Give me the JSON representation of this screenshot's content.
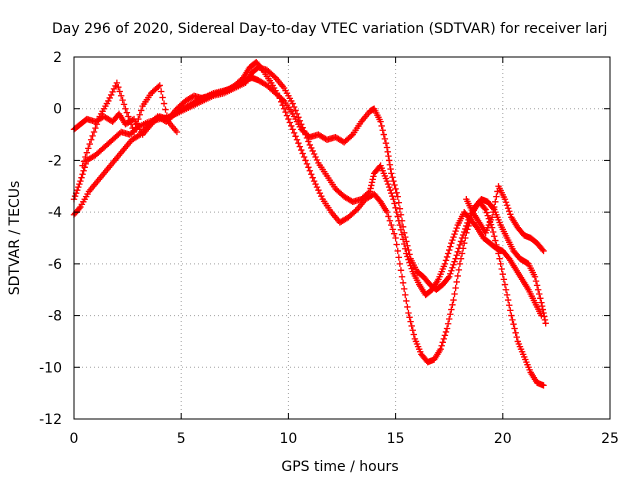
{
  "chart_data": {
    "type": "scatter",
    "title": "Day 296 of 2020, Sidereal Day-to-day VTEC variation (SDTVAR) for receiver larj",
    "xlabel": "GPS time / hours",
    "ylabel": "SDTVAR / TECUs",
    "xlim": [
      0,
      25
    ],
    "ylim": [
      -12,
      2
    ],
    "xticks": [
      "0",
      "5",
      "10",
      "15",
      "20",
      "25"
    ],
    "yticks": [
      "2",
      "0",
      "-2",
      "-4",
      "-6",
      "-8",
      "-10",
      "-12"
    ],
    "grid": true,
    "marker": "+",
    "series": [
      {
        "color": "#ff0000",
        "tracks": [
          {
            "x": [
              0.0,
              0.3,
              0.6,
              1.0,
              1.4,
              1.8,
              2.1,
              2.4,
              2.8,
              3.2,
              3.6,
              4.0,
              4.4,
              4.8,
              5.2,
              5.6,
              6.0,
              6.5,
              7.0,
              7.4,
              7.8,
              8.0,
              8.3,
              8.6,
              9.0,
              9.4,
              9.8,
              10.2,
              10.6,
              11.0,
              11.4,
              11.8,
              12.2,
              12.6,
              13.0,
              13.4,
              13.8,
              14.0,
              14.3,
              14.6,
              14.8,
              15.1,
              15.4,
              15.7,
              16.0,
              16.3,
              16.6,
              16.9,
              17.2,
              17.5,
              17.8,
              18.1,
              18.4,
              18.7,
              19.0,
              19.3,
              19.6,
              19.9,
              20.2,
              20.5,
              20.8,
              21.0,
              21.2,
              21.5,
              21.8,
              22.0
            ],
            "y": [
              -0.8,
              -0.6,
              -0.4,
              -0.5,
              -0.3,
              -0.5,
              -0.2,
              -0.6,
              -0.4,
              -1.0,
              -0.6,
              -0.3,
              -0.4,
              0.0,
              0.3,
              0.5,
              0.4,
              0.6,
              0.7,
              0.8,
              1.0,
              1.1,
              1.2,
              1.1,
              0.9,
              0.6,
              0.3,
              -0.2,
              -0.8,
              -1.1,
              -1.0,
              -1.2,
              -1.1,
              -1.3,
              -1.0,
              -0.5,
              -0.1,
              0.0,
              -0.5,
              -1.5,
              -2.5,
              -3.4,
              -4.8,
              -5.8,
              -6.3,
              -6.5,
              -6.8,
              -7.0,
              -6.8,
              -6.5,
              -5.8,
              -5.0,
              -4.3,
              -3.8,
              -3.5,
              -3.6,
              -3.9,
              -4.5,
              -5.0,
              -5.5,
              -5.8,
              -5.9,
              -6.0,
              -6.5,
              -7.5,
              -8.3
            ]
          },
          {
            "x": [
              0.0,
              0.3,
              0.6,
              1.0,
              1.4,
              1.8,
              2.2,
              2.6,
              3.0,
              3.5,
              4.0,
              4.5,
              5.0,
              5.5,
              6.0,
              6.5,
              7.0,
              7.5,
              8.0,
              8.3,
              8.6,
              9.0,
              9.4,
              9.8,
              10.2,
              10.6,
              11.0,
              11.4,
              11.8,
              12.2,
              12.6,
              13.0,
              13.4,
              13.8,
              14.0,
              14.3,
              14.6,
              14.9,
              15.2,
              15.5,
              15.8,
              16.1,
              16.4,
              16.7,
              17.0,
              17.3,
              17.6,
              17.9,
              18.2,
              18.5,
              18.8,
              19.1,
              19.4,
              19.7,
              20.0,
              20.3,
              20.6,
              20.9,
              21.2,
              21.5,
              21.8
            ],
            "y": [
              -3.5,
              -2.8,
              -2.0,
              -1.8,
              -1.5,
              -1.2,
              -0.9,
              -1.0,
              -0.7,
              -0.5,
              -0.4,
              -0.3,
              -0.1,
              0.1,
              0.3,
              0.5,
              0.6,
              0.8,
              1.0,
              1.4,
              1.6,
              1.5,
              1.2,
              0.8,
              0.2,
              -0.6,
              -1.4,
              -2.1,
              -2.6,
              -3.1,
              -3.4,
              -3.6,
              -3.5,
              -3.2,
              -2.5,
              -2.2,
              -2.8,
              -3.5,
              -4.5,
              -5.6,
              -6.3,
              -6.8,
              -7.2,
              -7.0,
              -6.6,
              -6.0,
              -5.2,
              -4.5,
              -4.0,
              -4.3,
              -4.6,
              -5.0,
              -5.2,
              -5.4,
              -5.5,
              -5.8,
              -6.2,
              -6.6,
              -7.0,
              -7.5,
              -8.0
            ]
          },
          {
            "x": [
              0.0,
              0.3,
              0.7,
              1.1,
              1.5,
              1.9,
              2.3,
              2.7,
              3.1,
              3.5,
              3.9,
              4.3,
              4.7,
              5.1,
              5.5,
              5.9,
              6.3,
              6.7,
              7.1,
              7.5,
              7.9,
              8.2,
              8.5,
              8.8,
              9.2,
              9.6,
              10.0,
              10.4,
              10.8,
              11.2,
              11.6,
              12.0,
              12.4,
              12.8,
              13.2,
              13.6,
              14.0,
              14.3,
              14.6,
              15.0,
              15.3,
              15.6,
              15.9,
              16.2,
              16.5,
              16.8,
              17.1,
              17.4,
              17.7,
              18.0,
              18.3,
              18.6,
              18.9,
              19.2,
              19.5,
              19.8,
              20.1,
              20.4,
              20.7,
              21.0,
              21.3,
              21.6,
              21.9
            ],
            "y": [
              -4.1,
              -3.8,
              -3.2,
              -2.8,
              -2.4,
              -2.0,
              -1.6,
              -1.2,
              -1.0,
              -0.6,
              -0.3,
              -0.5,
              -0.2,
              0.0,
              0.2,
              0.4,
              0.5,
              0.6,
              0.7,
              0.9,
              1.2,
              1.6,
              1.8,
              1.5,
              1.0,
              0.4,
              -0.4,
              -1.2,
              -2.0,
              -2.8,
              -3.5,
              -4.0,
              -4.4,
              -4.2,
              -3.9,
              -3.5,
              -3.3,
              -3.6,
              -4.0,
              -5.0,
              -6.5,
              -7.9,
              -8.9,
              -9.5,
              -9.8,
              -9.7,
              -9.3,
              -8.5,
              -7.4,
              -6.0,
              -4.8,
              -4.0,
              -3.6,
              -3.9,
              -4.6,
              -5.6,
              -6.8,
              -8.0,
              -9.0,
              -9.6,
              -10.2,
              -10.6,
              -10.7
            ]
          },
          {
            "x": [
              0.4,
              0.8,
              1.2,
              1.6,
              2.0,
              2.4,
              2.8,
              3.2,
              3.6,
              4.0,
              4.4,
              4.8
            ],
            "y": [
              -2.2,
              -1.2,
              -0.3,
              0.3,
              1.0,
              0.0,
              -0.9,
              0.1,
              0.6,
              0.9,
              -0.5,
              -0.9
            ]
          },
          {
            "x": [
              18.3,
              18.6,
              18.9,
              19.2,
              19.5,
              19.8,
              20.1,
              20.4,
              20.7,
              21.0,
              21.3,
              21.6,
              21.9
            ],
            "y": [
              -3.5,
              -4.0,
              -4.4,
              -4.8,
              -4.2,
              -3.0,
              -3.5,
              -4.2,
              -4.6,
              -4.9,
              -5.0,
              -5.2,
              -5.5
            ]
          }
        ]
      }
    ]
  }
}
